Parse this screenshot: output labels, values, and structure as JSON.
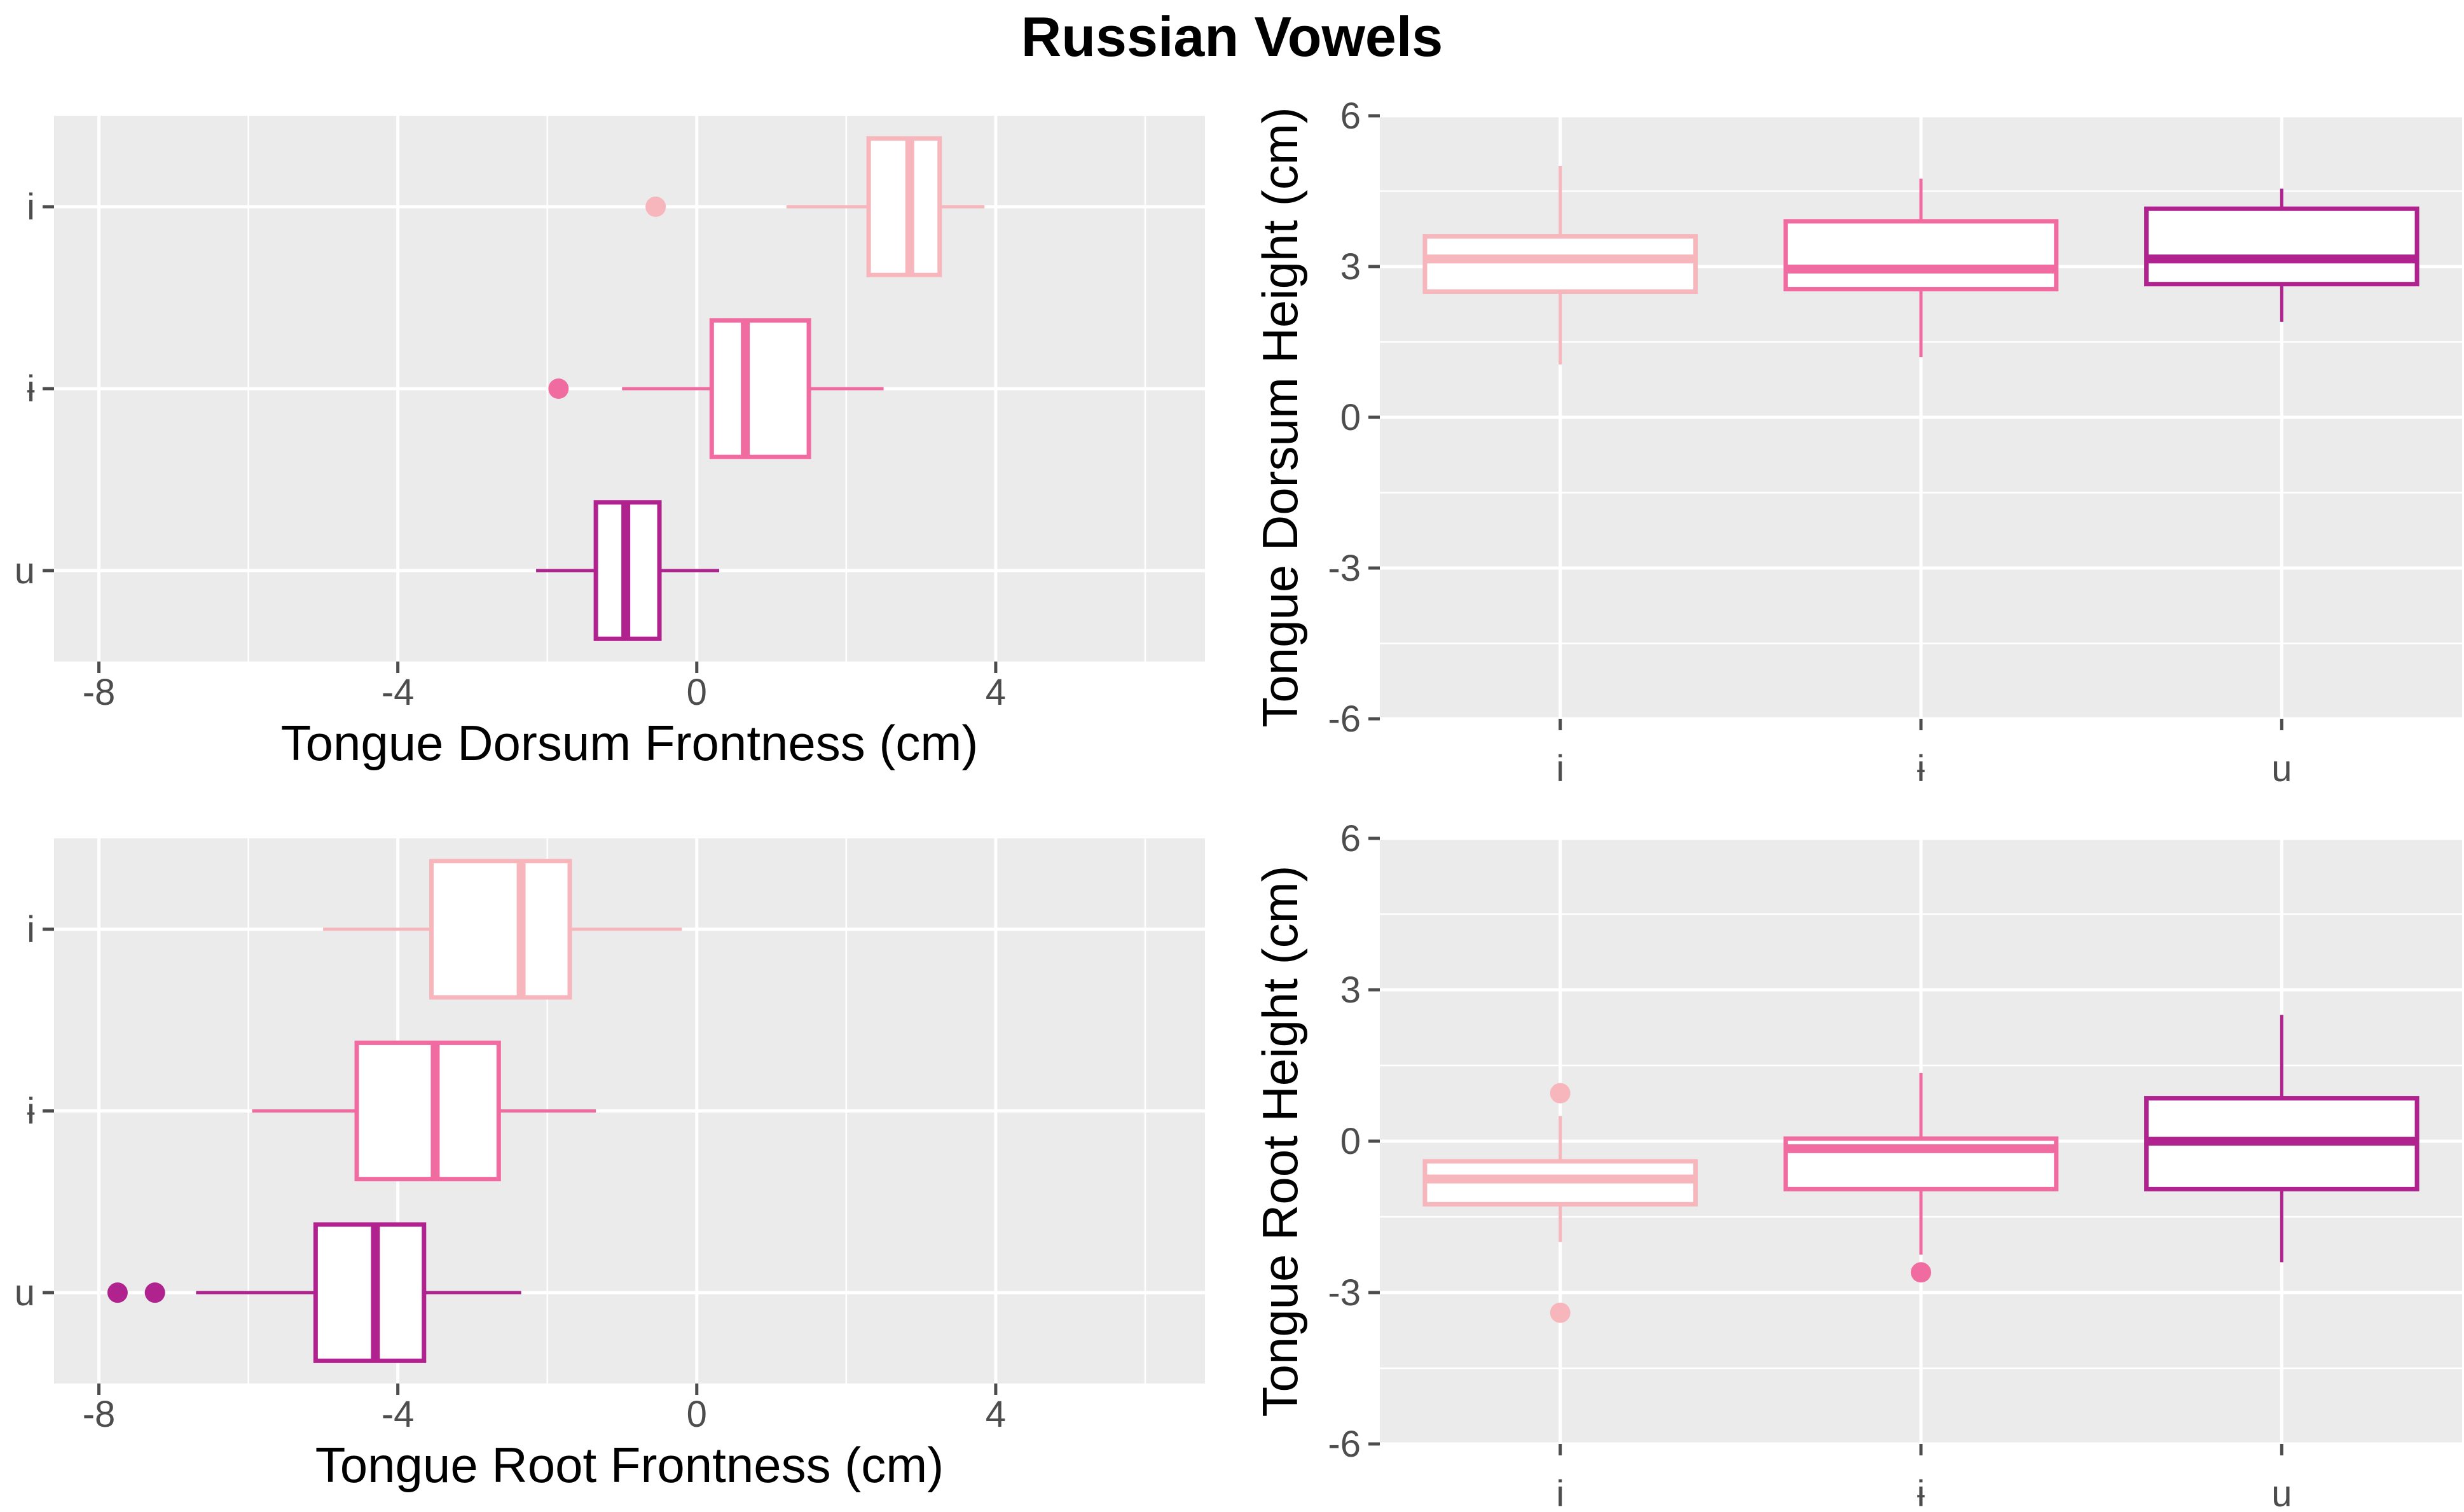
{
  "title": "Russian Vowels",
  "colors": {
    "i": "#f7b6bc",
    "ɨ": "#f06ba0",
    "u": "#b0238e"
  },
  "chart_data": [
    {
      "id": "dorsum-frontness",
      "type": "boxplot",
      "orientation": "horizontal",
      "xlabel": "Tongue Dorsum Frontness (cm)",
      "ylabel": "",
      "xlim": [
        -8.6,
        6.8
      ],
      "x_ticks": [
        -8,
        -4,
        0,
        4
      ],
      "x_tick_labels": [
        "-8",
        "-4",
        "0",
        "4"
      ],
      "categories": [
        "i",
        "ɨ",
        "u"
      ],
      "boxes": [
        {
          "cat": "i",
          "whisker_low": 1.2,
          "q1": 2.3,
          "median": 2.85,
          "q3": 3.25,
          "whisker_high": 3.85,
          "outliers": [
            -0.55
          ]
        },
        {
          "cat": "ɨ",
          "whisker_low": -1.0,
          "q1": 0.2,
          "median": 0.65,
          "q3": 1.5,
          "whisker_high": 2.5,
          "outliers": [
            -1.85
          ]
        },
        {
          "cat": "u",
          "whisker_low": -2.15,
          "q1": -1.35,
          "median": -0.95,
          "q3": -0.5,
          "whisker_high": 0.3,
          "outliers": []
        }
      ]
    },
    {
      "id": "dorsum-height",
      "type": "boxplot",
      "orientation": "vertical",
      "xlabel": "",
      "ylabel": "Tongue Dorsum Height (cm)",
      "ylim": [
        -6,
        6
      ],
      "y_ticks": [
        -6,
        -3,
        0,
        3,
        6
      ],
      "y_tick_labels": [
        "-6",
        "-3",
        "0",
        "3",
        "6"
      ],
      "categories": [
        "i",
        "ɨ",
        "u"
      ],
      "boxes": [
        {
          "cat": "i",
          "whisker_low": 1.05,
          "q1": 2.5,
          "median": 3.15,
          "q3": 3.6,
          "whisker_high": 5.0,
          "outliers": []
        },
        {
          "cat": "ɨ",
          "whisker_low": 1.2,
          "q1": 2.55,
          "median": 2.95,
          "q3": 3.9,
          "whisker_high": 4.75,
          "outliers": []
        },
        {
          "cat": "u",
          "whisker_low": 1.9,
          "q1": 2.65,
          "median": 3.15,
          "q3": 4.15,
          "whisker_high": 4.55,
          "outliers": []
        }
      ]
    },
    {
      "id": "root-frontness",
      "type": "boxplot",
      "orientation": "horizontal",
      "xlabel": "Tongue Root Frontness (cm)",
      "ylabel": "",
      "xlim": [
        -8.6,
        6.8
      ],
      "x_ticks": [
        -8,
        -4,
        0,
        4
      ],
      "x_tick_labels": [
        "-8",
        "-4",
        "0",
        "4"
      ],
      "categories": [
        "i",
        "ɨ",
        "u"
      ],
      "boxes": [
        {
          "cat": "i",
          "whisker_low": -5.0,
          "q1": -3.55,
          "median": -2.35,
          "q3": -1.7,
          "whisker_high": -0.2,
          "outliers": []
        },
        {
          "cat": "ɨ",
          "whisker_low": -5.95,
          "q1": -4.55,
          "median": -3.5,
          "q3": -2.65,
          "whisker_high": -1.35,
          "outliers": []
        },
        {
          "cat": "u",
          "whisker_low": -6.7,
          "q1": -5.1,
          "median": -4.3,
          "q3": -3.65,
          "whisker_high": -2.35,
          "outliers": [
            -7.75,
            -7.25
          ]
        }
      ]
    },
    {
      "id": "root-height",
      "type": "boxplot",
      "orientation": "vertical",
      "xlabel": "",
      "ylabel": "Tongue Root Height (cm)",
      "ylim": [
        -6,
        6
      ],
      "y_ticks": [
        -6,
        -3,
        0,
        3,
        6
      ],
      "y_tick_labels": [
        "-6",
        "-3",
        "0",
        "3",
        "6"
      ],
      "categories": [
        "i",
        "ɨ",
        "u"
      ],
      "boxes": [
        {
          "cat": "i",
          "whisker_low": -2.0,
          "q1": -1.25,
          "median": -0.75,
          "q3": -0.4,
          "whisker_high": 0.5,
          "outliers": [
            0.95,
            -3.4
          ]
        },
        {
          "cat": "ɨ",
          "whisker_low": -2.25,
          "q1": -0.95,
          "median": -0.15,
          "q3": 0.05,
          "whisker_high": 1.35,
          "outliers": [
            -2.6
          ]
        },
        {
          "cat": "u",
          "whisker_low": -2.4,
          "q1": -0.95,
          "median": 0.0,
          "q3": 0.85,
          "whisker_high": 2.5,
          "outliers": []
        }
      ]
    }
  ]
}
